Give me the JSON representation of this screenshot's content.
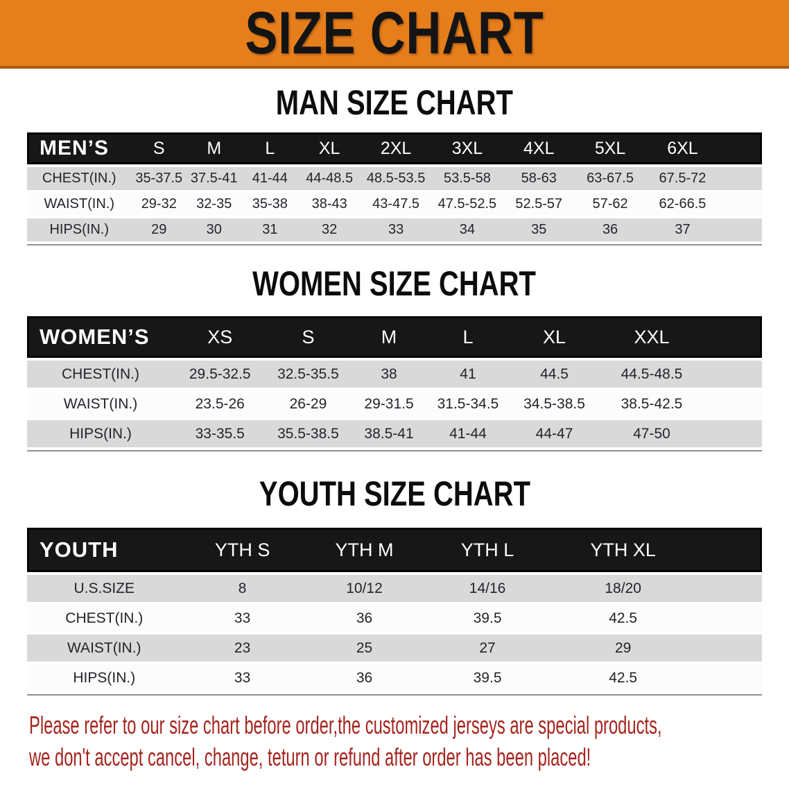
{
  "banner": {
    "title": "SIZE CHART",
    "bg_color": "#e67e1b"
  },
  "men": {
    "title": "MAN SIZE CHART",
    "label": "MEN’S",
    "sizes": [
      "S",
      "M",
      "L",
      "XL",
      "2XL",
      "3XL",
      "4XL",
      "5XL",
      "6XL"
    ],
    "rows": [
      {
        "label": "CHEST(IN.)",
        "values": [
          "35-37.5",
          "37.5-41",
          "41-44",
          "44-48.5",
          "48.5-53.5",
          "53.5-58",
          "58-63",
          "63-67.5",
          "67.5-72"
        ]
      },
      {
        "label": "WAIST(IN.)",
        "values": [
          "29-32",
          "32-35",
          "35-38",
          "38-43",
          "43-47.5",
          "47.5-52.5",
          "52.5-57",
          "57-62",
          "62-66.5"
        ]
      },
      {
        "label": "HIPS(IN.)",
        "values": [
          "29",
          "30",
          "31",
          "32",
          "33",
          "34",
          "35",
          "36",
          "37"
        ]
      }
    ]
  },
  "women": {
    "title": "WOMEN SIZE CHART",
    "label": "WOMEN’S",
    "sizes": [
      "XS",
      "S",
      "M",
      "L",
      "XL",
      "XXL"
    ],
    "rows": [
      {
        "label": "CHEST(IN.)",
        "values": [
          "29.5-32.5",
          "32.5-35.5",
          "38",
          "41",
          "44.5",
          "44.5-48.5"
        ]
      },
      {
        "label": "WAIST(IN.)",
        "values": [
          "23.5-26",
          "26-29",
          "29-31.5",
          "31.5-34.5",
          "34.5-38.5",
          "38.5-42.5"
        ]
      },
      {
        "label": "HIPS(IN.)",
        "values": [
          "33-35.5",
          "35.5-38.5",
          "38.5-41",
          "41-44",
          "44-47",
          "47-50"
        ]
      }
    ]
  },
  "youth": {
    "title": "YOUTH SIZE CHART",
    "label": "YOUTH",
    "sizes": [
      "YTH S",
      "YTH M",
      "YTH L",
      "YTH XL"
    ],
    "rows": [
      {
        "label": "U.S.SIZE",
        "values": [
          "8",
          "10/12",
          "14/16",
          "18/20"
        ]
      },
      {
        "label": "CHEST(IN.)",
        "values": [
          "33",
          "36",
          "39.5",
          "42.5"
        ]
      },
      {
        "label": "WAIST(IN.)",
        "values": [
          "23",
          "25",
          "27",
          "29"
        ]
      },
      {
        "label": "HIPS(IN.)",
        "values": [
          "33",
          "36",
          "39.5",
          "42.5"
        ]
      }
    ]
  },
  "note": {
    "line1": "Please refer to our size chart before order,the customized jerseys are special products,",
    "line2": "we don't accept cancel, change, teturn or refund after order has been placed!",
    "color": "#a5241d"
  }
}
